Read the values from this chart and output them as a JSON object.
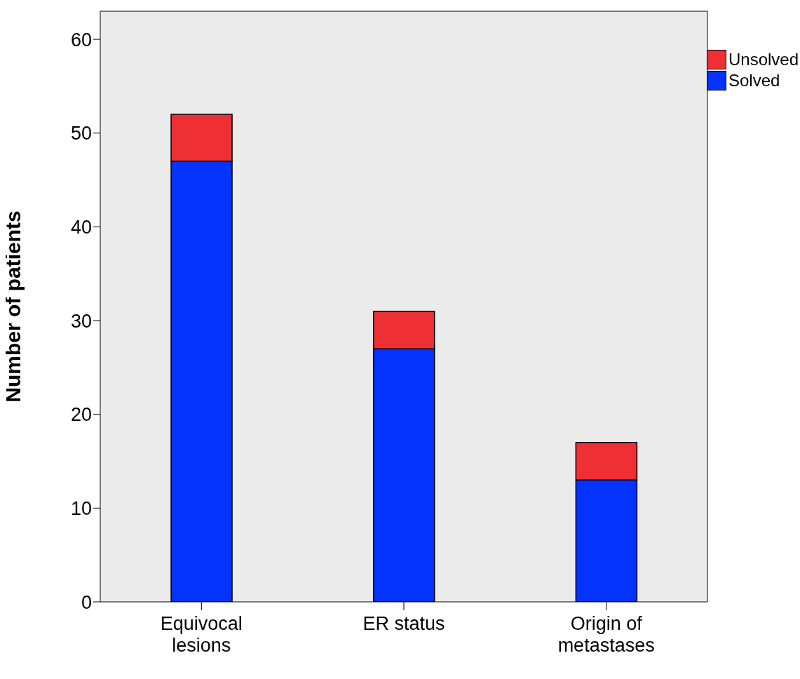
{
  "chart_data": {
    "type": "bar",
    "ylabel": "Number of patients",
    "categories": [
      "Equivocal lesions",
      "ER status",
      "Origin of metastases"
    ],
    "series": [
      {
        "name": "Solved",
        "color": "#0433ff",
        "values": [
          47,
          27,
          13
        ]
      },
      {
        "name": "Unsolved",
        "color": "#ee3035",
        "values": [
          5,
          4,
          4
        ]
      }
    ],
    "stacked": true,
    "ylim": [
      0,
      63
    ],
    "yticks": [
      0,
      10,
      20,
      30,
      40,
      50,
      60
    ],
    "grid": false,
    "legend": "top right"
  }
}
